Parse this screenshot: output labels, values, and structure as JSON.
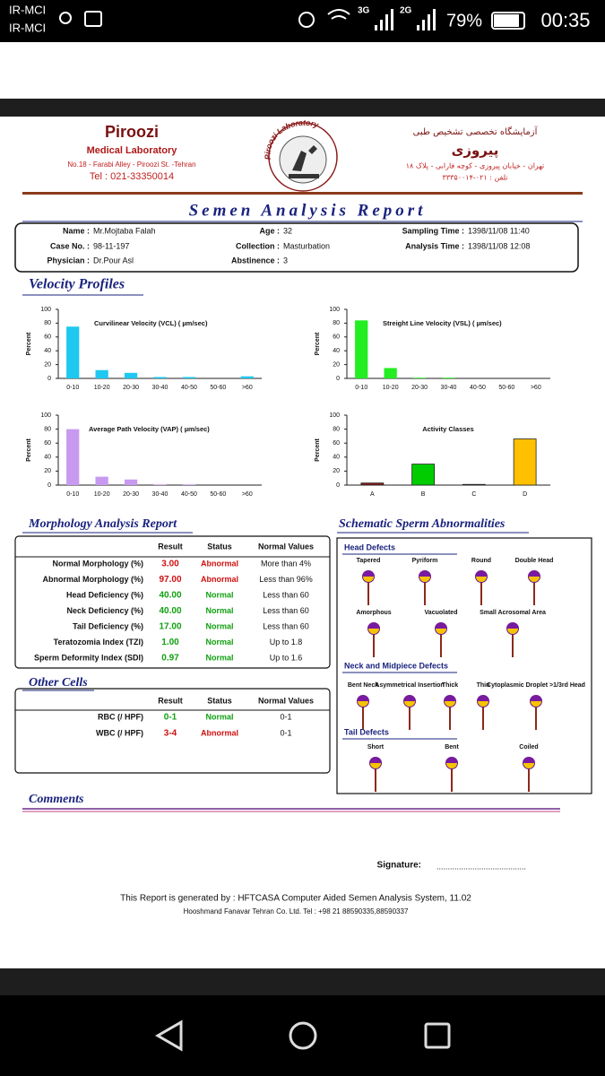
{
  "status_bar": {
    "carriers": [
      "IR-MCI",
      "IR-MCI"
    ],
    "network_1": "3G",
    "network_2": "2G",
    "battery": "79%",
    "time": "00:35"
  },
  "header": {
    "lab_name": "Piroozi",
    "lab_subtitle": "Medical Laboratory",
    "address": "No.18 - Farabi Alley - Piroozi St. -Tehran",
    "phone": "Tel : 021-33350014",
    "logo_text": "Piroozi Laboratory",
    "fa_title": "آزمایشگاه تخصصی تشخیص طبی",
    "fa_name": "پیروزی",
    "fa_address": "تهران - خیابان پیروزی - کوچه فارابی - پلاک ۱۸",
    "fa_phone": "تلفن : ۰۲۱-۳۳۳۵۰۰۱۴"
  },
  "report_title": "Semen Analysis Report",
  "patient": {
    "fields": [
      {
        "label": "Name :",
        "value": "Mr.Mojtaba Falah"
      },
      {
        "label": "Age :",
        "value": "32"
      },
      {
        "label": "Sampling Time :",
        "value": "1398/11/08  11:40"
      },
      {
        "label": "Case No. :",
        "value": "98-11-197"
      },
      {
        "label": "Collection :",
        "value": "Masturbation"
      },
      {
        "label": "Analysis Time :",
        "value": "1398/11/08  12:08"
      },
      {
        "label": "Physician :",
        "value": "Dr.Pour Asl"
      },
      {
        "label": "Abstinence :",
        "value": "3"
      }
    ]
  },
  "velocity_title": "Velocity Profiles",
  "charts": [
    {
      "type": "bar",
      "title": "Curvilinear Velocity (VCL) ( µm/sec)",
      "ylabel": "Percent",
      "categories": [
        "0-10",
        "10-20",
        "20-30",
        "30-40",
        "40-50",
        "50-60",
        ">60"
      ],
      "values": [
        75,
        12,
        8,
        2,
        2,
        0,
        3
      ],
      "color": "#1ec8f0",
      "ylim": [
        0,
        100
      ],
      "yticks": [
        0,
        20,
        40,
        60,
        80,
        100
      ]
    },
    {
      "type": "bar",
      "title": "Streight Line Velocity (VSL) ( µm/sec)",
      "ylabel": "Percent",
      "categories": [
        "0-10",
        "10-20",
        "20-30",
        "30-40",
        "40-50",
        "50-60",
        ">60"
      ],
      "values": [
        84,
        15,
        1,
        1,
        0,
        0,
        0
      ],
      "color": "#22ee22",
      "ylim": [
        0,
        100
      ],
      "yticks": [
        0,
        20,
        40,
        60,
        80,
        100
      ]
    },
    {
      "type": "bar",
      "title": "Average Path Velocity (VAP) ( µm/sec)",
      "ylabel": "Percent",
      "categories": [
        "0-10",
        "10-20",
        "20-30",
        "30-40",
        "40-50",
        "50-60",
        ">60"
      ],
      "values": [
        80,
        12,
        8,
        1,
        1,
        0,
        0
      ],
      "color": "#c79af0",
      "ylim": [
        0,
        100
      ],
      "yticks": [
        0,
        20,
        40,
        60,
        80,
        100
      ]
    },
    {
      "type": "bar",
      "title": "Activity Classes",
      "ylabel": "Percent",
      "categories": [
        "A",
        "B",
        "C",
        "D"
      ],
      "values": [
        3,
        30,
        1,
        66
      ],
      "colors": [
        "#8b1a1a",
        "#00cc00",
        "#444444",
        "#ffc000"
      ],
      "ylim": [
        0,
        100
      ],
      "yticks": [
        0,
        20,
        40,
        60,
        80,
        100
      ]
    }
  ],
  "morphology": {
    "title": "Morphology Analysis Report",
    "columns": [
      "Result",
      "Status",
      "Normal Values"
    ],
    "rows": [
      [
        "Normal Morphology (%)",
        "3.00",
        "Abnormal",
        "More than  4%"
      ],
      [
        "Abnormal Morphology (%)",
        "97.00",
        "Abnormal",
        "Less than  96%"
      ],
      [
        "Head Deficiency (%)",
        "40.00",
        "Normal",
        "Less than  60"
      ],
      [
        "Neck Deficiency (%)",
        "40.00",
        "Normal",
        "Less than  60"
      ],
      [
        "Tail Deficiency (%)",
        "17.00",
        "Normal",
        "Less than  60"
      ],
      [
        "Teratozomia Index (TZI)",
        "1.00",
        "Normal",
        "Up to 1.8"
      ],
      [
        "Sperm Deformity Index (SDI)",
        "0.97",
        "Normal",
        "Up to 1.6"
      ]
    ]
  },
  "other_cells": {
    "title": "Other Cells",
    "columns": [
      "Result",
      "Status",
      "Normal Values"
    ],
    "rows": [
      [
        "RBC (/ HPF)",
        "0-1",
        "Normal",
        "0-1"
      ],
      [
        "WBC (/ HPF)",
        "3-4",
        "Abnormal",
        "0-1"
      ]
    ]
  },
  "schematic": {
    "title": "Schematic Sperm Abnormalities",
    "groups": [
      {
        "title": "Head Defects",
        "items": [
          "Tapered",
          "Pyriform",
          "Round",
          "Double Head",
          "Amorphous",
          "Vacuolated",
          "Small Acrosomal Area"
        ]
      },
      {
        "title": "Neck and Midpiece Defects",
        "items": [
          "Bent Neck",
          "Asymmetrical Insertion",
          "Thick",
          "Thin",
          "Cytoplasmic Droplet >1/3rd Head"
        ]
      },
      {
        "title": "Tail Defects",
        "items": [
          "Short",
          "Bent",
          "Coiled"
        ]
      }
    ]
  },
  "comments_title": "Comments",
  "signature_label": "Signature:",
  "signature_line": "........................................",
  "footer": [
    "This Report is generated by : HFTCASA Computer Aided Semen Analysis System,   11.02",
    "Hooshmand Fanavar Tehran Co. Ltd.    Tel : +98 21 88590335,88590337"
  ]
}
